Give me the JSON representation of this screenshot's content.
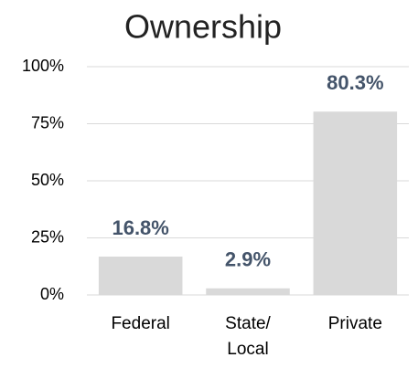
{
  "chart_data": {
    "type": "bar",
    "title": "Ownership",
    "categories": [
      "Federal",
      "State/ Local",
      "Private"
    ],
    "values": [
      16.8,
      2.9,
      80.3
    ],
    "value_labels": [
      "16.8%",
      "2.9%",
      "80.3%"
    ],
    "color": "#d9d9d9",
    "label_color": "#44546a",
    "ylim": [
      0,
      100
    ],
    "yticks": [
      {
        "value": 0,
        "label": "0%"
      },
      {
        "value": 25,
        "label": "25%"
      },
      {
        "value": 50,
        "label": "50%"
      },
      {
        "value": 75,
        "label": "75%"
      },
      {
        "value": 100,
        "label": "100%"
      }
    ],
    "grid": true
  }
}
